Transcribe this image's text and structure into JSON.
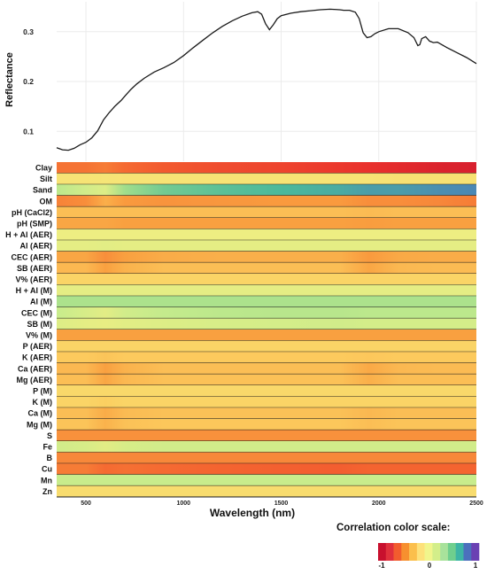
{
  "chart_data": [
    {
      "type": "line",
      "title": "",
      "xlabel": "",
      "ylabel": "Reflectance",
      "xlim": [
        350,
        2500
      ],
      "ylim": [
        0.04,
        0.36
      ],
      "yticks": [
        0.1,
        0.2,
        0.3
      ],
      "ytick_labels": [
        "0.1",
        "0.2",
        "0.3"
      ],
      "grid": true,
      "series": [
        {
          "name": "",
          "x": [
            350,
            380,
            410,
            440,
            470,
            500,
            530,
            560,
            590,
            620,
            650,
            680,
            700,
            730,
            760,
            800,
            850,
            900,
            950,
            1000,
            1050,
            1100,
            1150,
            1200,
            1250,
            1300,
            1350,
            1380,
            1400,
            1420,
            1440,
            1460,
            1480,
            1500,
            1550,
            1600,
            1650,
            1700,
            1750,
            1800,
            1820,
            1850,
            1880,
            1900,
            1920,
            1940,
            1960,
            1980,
            2000,
            2050,
            2100,
            2150,
            2180,
            2200,
            2210,
            2220,
            2240,
            2260,
            2280,
            2300,
            2350,
            2400,
            2450,
            2500
          ],
          "y": [
            0.067,
            0.063,
            0.062,
            0.066,
            0.073,
            0.078,
            0.087,
            0.101,
            0.123,
            0.138,
            0.151,
            0.162,
            0.171,
            0.184,
            0.195,
            0.207,
            0.219,
            0.228,
            0.238,
            0.252,
            0.268,
            0.283,
            0.298,
            0.311,
            0.322,
            0.331,
            0.338,
            0.34,
            0.335,
            0.316,
            0.304,
            0.314,
            0.326,
            0.332,
            0.337,
            0.34,
            0.342,
            0.344,
            0.345,
            0.344,
            0.343,
            0.343,
            0.339,
            0.326,
            0.298,
            0.288,
            0.29,
            0.296,
            0.3,
            0.306,
            0.306,
            0.298,
            0.288,
            0.272,
            0.274,
            0.286,
            0.29,
            0.281,
            0.278,
            0.279,
            0.268,
            0.258,
            0.248,
            0.236
          ]
        }
      ]
    },
    {
      "type": "heatmap",
      "xlabel": "Wavelength (nm)",
      "xlim": [
        350,
        2500
      ],
      "xticks": [
        500,
        1000,
        1500,
        2000,
        2500
      ],
      "xtick_labels": [
        "500",
        "1000",
        "1500",
        "2000",
        "2500"
      ],
      "value_range": [
        -1,
        1
      ],
      "x_control_points": [
        350,
        500,
        600,
        700,
        900,
        1200,
        1500,
        1800,
        1950,
        2100,
        2300,
        2500
      ],
      "rows": [
        {
          "label": "Clay",
          "values": [
            -0.45,
            -0.45,
            -0.42,
            -0.48,
            -0.55,
            -0.62,
            -0.66,
            -0.72,
            -0.76,
            -0.8,
            -0.86,
            -0.88
          ]
        },
        {
          "label": "Silt",
          "values": [
            -0.05,
            -0.05,
            -0.04,
            -0.05,
            -0.05,
            -0.05,
            -0.05,
            -0.05,
            -0.05,
            -0.06,
            -0.06,
            -0.06
          ]
        },
        {
          "label": "Sand",
          "values": [
            0.18,
            0.12,
            0.08,
            0.25,
            0.38,
            0.45,
            0.5,
            0.55,
            0.6,
            0.6,
            0.65,
            0.68
          ]
        },
        {
          "label": "OM",
          "values": [
            -0.4,
            -0.36,
            -0.25,
            -0.32,
            -0.34,
            -0.33,
            -0.32,
            -0.32,
            -0.36,
            -0.36,
            -0.38,
            -0.42
          ]
        },
        {
          "label": "pH (CaCl2)",
          "values": [
            -0.2,
            -0.2,
            -0.2,
            -0.2,
            -0.2,
            -0.2,
            -0.2,
            -0.2,
            -0.21,
            -0.2,
            -0.2,
            -0.2
          ]
        },
        {
          "label": "pH (SMP)",
          "values": [
            -0.28,
            -0.28,
            -0.28,
            -0.3,
            -0.3,
            -0.3,
            -0.3,
            -0.3,
            -0.31,
            -0.3,
            -0.3,
            -0.3
          ]
        },
        {
          "label": "H + Al (AER)",
          "values": [
            0.02,
            0.02,
            0.02,
            0.02,
            0.02,
            0.02,
            0.02,
            0.02,
            0.02,
            0.02,
            0.02,
            0.02
          ]
        },
        {
          "label": "Al (AER)",
          "values": [
            0.05,
            0.05,
            0.06,
            0.05,
            0.05,
            0.05,
            0.05,
            0.05,
            0.05,
            0.05,
            0.05,
            0.05
          ]
        },
        {
          "label": "CEC (AER)",
          "values": [
            -0.28,
            -0.28,
            -0.36,
            -0.3,
            -0.26,
            -0.25,
            -0.25,
            -0.25,
            -0.32,
            -0.27,
            -0.26,
            -0.26
          ]
        },
        {
          "label": "SB (AER)",
          "values": [
            -0.22,
            -0.22,
            -0.3,
            -0.24,
            -0.2,
            -0.2,
            -0.2,
            -0.2,
            -0.28,
            -0.22,
            -0.21,
            -0.21
          ]
        },
        {
          "label": "V% (AER)",
          "values": [
            -0.12,
            -0.12,
            -0.12,
            -0.12,
            -0.12,
            -0.12,
            -0.12,
            -0.12,
            -0.12,
            -0.12,
            -0.12,
            -0.12
          ]
        },
        {
          "label": "H + Al (M)",
          "values": [
            0.05,
            0.05,
            0.05,
            0.05,
            0.05,
            0.05,
            0.05,
            0.05,
            0.05,
            0.05,
            0.05,
            0.05
          ]
        },
        {
          "label": "Al (M)",
          "values": [
            0.22,
            0.22,
            0.22,
            0.22,
            0.22,
            0.22,
            0.22,
            0.22,
            0.22,
            0.22,
            0.22,
            0.22
          ]
        },
        {
          "label": "CEC (M)",
          "values": [
            0.15,
            0.1,
            0.06,
            0.12,
            0.16,
            0.18,
            0.19,
            0.19,
            0.18,
            0.18,
            0.18,
            0.18
          ]
        },
        {
          "label": "SB (M)",
          "values": [
            0.08,
            0.05,
            0.04,
            0.06,
            0.08,
            0.1,
            0.11,
            0.12,
            0.11,
            0.11,
            0.11,
            0.11
          ]
        },
        {
          "label": "V% (M)",
          "values": [
            -0.3,
            -0.3,
            -0.3,
            -0.3,
            -0.3,
            -0.3,
            -0.3,
            -0.3,
            -0.3,
            -0.3,
            -0.3,
            -0.3
          ]
        },
        {
          "label": "P (AER)",
          "values": [
            -0.12,
            -0.12,
            -0.12,
            -0.12,
            -0.12,
            -0.12,
            -0.12,
            -0.12,
            -0.12,
            -0.12,
            -0.12,
            -0.12
          ]
        },
        {
          "label": "K (AER)",
          "values": [
            -0.16,
            -0.16,
            -0.18,
            -0.16,
            -0.16,
            -0.16,
            -0.16,
            -0.16,
            -0.17,
            -0.16,
            -0.16,
            -0.16
          ]
        },
        {
          "label": "Ca (AER)",
          "values": [
            -0.22,
            -0.22,
            -0.3,
            -0.24,
            -0.2,
            -0.2,
            -0.2,
            -0.2,
            -0.27,
            -0.22,
            -0.21,
            -0.21
          ]
        },
        {
          "label": "Mg (AER)",
          "values": [
            -0.2,
            -0.2,
            -0.28,
            -0.22,
            -0.19,
            -0.19,
            -0.19,
            -0.19,
            -0.25,
            -0.2,
            -0.2,
            -0.2
          ]
        },
        {
          "label": "P (M)",
          "values": [
            -0.1,
            -0.1,
            -0.1,
            -0.1,
            -0.1,
            -0.1,
            -0.1,
            -0.1,
            -0.1,
            -0.1,
            -0.1,
            -0.1
          ]
        },
        {
          "label": "K (M)",
          "values": [
            -0.12,
            -0.12,
            -0.14,
            -0.12,
            -0.12,
            -0.12,
            -0.12,
            -0.12,
            -0.12,
            -0.12,
            -0.12,
            -0.12
          ]
        },
        {
          "label": "Ca (M)",
          "values": [
            -0.2,
            -0.2,
            -0.26,
            -0.21,
            -0.19,
            -0.19,
            -0.19,
            -0.19,
            -0.22,
            -0.2,
            -0.2,
            -0.2
          ]
        },
        {
          "label": "Mg (M)",
          "values": [
            -0.18,
            -0.18,
            -0.24,
            -0.19,
            -0.17,
            -0.17,
            -0.17,
            -0.17,
            -0.2,
            -0.18,
            -0.18,
            -0.18
          ]
        },
        {
          "label": "S",
          "values": [
            -0.35,
            -0.35,
            -0.35,
            -0.35,
            -0.35,
            -0.35,
            -0.35,
            -0.35,
            -0.35,
            -0.35,
            -0.35,
            -0.35
          ]
        },
        {
          "label": "Fe",
          "values": [
            0.12,
            0.1,
            0.06,
            0.1,
            0.12,
            0.12,
            0.12,
            0.12,
            0.12,
            0.12,
            0.12,
            0.12
          ]
        },
        {
          "label": "B",
          "values": [
            -0.38,
            -0.38,
            -0.38,
            -0.38,
            -0.38,
            -0.38,
            -0.38,
            -0.38,
            -0.38,
            -0.38,
            -0.38,
            -0.38
          ]
        },
        {
          "label": "Cu",
          "values": [
            -0.42,
            -0.42,
            -0.48,
            -0.46,
            -0.48,
            -0.5,
            -0.52,
            -0.53,
            -0.5,
            -0.5,
            -0.5,
            -0.5
          ]
        },
        {
          "label": "Mn",
          "values": [
            0.15,
            0.15,
            0.15,
            0.15,
            0.15,
            0.15,
            0.15,
            0.15,
            0.15,
            0.15,
            0.15,
            0.15
          ]
        },
        {
          "label": "Zn",
          "values": [
            -0.08,
            -0.08,
            -0.08,
            -0.08,
            -0.08,
            -0.08,
            -0.08,
            -0.08,
            -0.08,
            -0.08,
            -0.08,
            -0.08
          ]
        }
      ]
    }
  ],
  "color_scale": {
    "title": "Correlation color scale:",
    "min_label": "-1",
    "mid_label": "0",
    "max_label": "1",
    "colors": [
      "#c8102e",
      "#e0303c",
      "#f25c2e",
      "#f7902f",
      "#fbbf4c",
      "#fde17a",
      "#f1f58c",
      "#d3ee8a",
      "#a8e29b",
      "#6fcf8e",
      "#3db5a5",
      "#4b70bd",
      "#6a41b3"
    ]
  }
}
